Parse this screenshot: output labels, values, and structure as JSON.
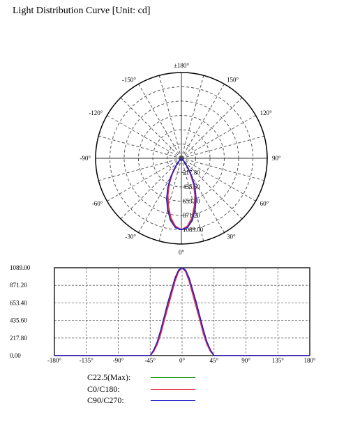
{
  "page": {
    "title": "Light Distribution Curve [Unit: cd]"
  },
  "colors": {
    "c22": "#1a9a1a",
    "c0": "#ee2244",
    "c90": "#2222cc",
    "grid": "#555555"
  },
  "chart_data": [
    {
      "type": "polar",
      "title": "",
      "angle_labels": [
        "±180°",
        "150°",
        "120°",
        "90°",
        "60°",
        "30°",
        "0°",
        "-30°",
        "-60°",
        "-90°",
        "-120°",
        "-150°"
      ],
      "radial_labels": [
        "217.80",
        "435.60",
        "653.40",
        "871.20",
        "1089.00"
      ],
      "radial_range": [
        0,
        1089
      ],
      "series": [
        {
          "name": "C22.5(Max)",
          "key": "c22",
          "angles": [
            0,
            5,
            10,
            15,
            20,
            25,
            30,
            35,
            40,
            45
          ],
          "values": [
            1089,
            1050,
            940,
            790,
            640,
            470,
            300,
            160,
            60,
            0
          ]
        },
        {
          "name": "C0/C180",
          "key": "c0",
          "angles": [
            0,
            5,
            10,
            15,
            20,
            25,
            30,
            35,
            40,
            45
          ],
          "values": [
            1089,
            1040,
            920,
            760,
            600,
            440,
            270,
            140,
            50,
            0
          ]
        },
        {
          "name": "C90/C270",
          "key": "c90",
          "angles": [
            0,
            5,
            10,
            15,
            20,
            25,
            30,
            35,
            40,
            45
          ],
          "values": [
            1089,
            1060,
            960,
            810,
            660,
            490,
            320,
            170,
            70,
            0
          ]
        }
      ]
    },
    {
      "type": "line",
      "x_tick_labels": [
        "-180°",
        "-135°",
        "-90°",
        "-45°",
        "0°",
        "45°",
        "90°",
        "135°",
        "180°"
      ],
      "y_tick_labels": [
        "0.00",
        "217.80",
        "435.60",
        "653.40",
        "871.20",
        "1089.00"
      ],
      "xlim": [
        -180,
        180
      ],
      "ylim": [
        0,
        1089
      ],
      "grid": true,
      "series": [
        {
          "name": "C22.5(Max)",
          "key": "c22",
          "x": [
            -180,
            -45,
            -40,
            -35,
            -30,
            -25,
            -20,
            -15,
            -10,
            -5,
            0,
            5,
            10,
            15,
            20,
            25,
            30,
            35,
            40,
            45,
            180
          ],
          "y": [
            0,
            0,
            60,
            160,
            300,
            470,
            640,
            790,
            940,
            1050,
            1089,
            1050,
            940,
            790,
            640,
            470,
            300,
            160,
            60,
            0,
            0
          ]
        },
        {
          "name": "C0/C180",
          "key": "c0",
          "x": [
            -180,
            -45,
            -40,
            -35,
            -30,
            -25,
            -20,
            -15,
            -10,
            -5,
            0,
            5,
            10,
            15,
            20,
            25,
            30,
            35,
            40,
            45,
            180
          ],
          "y": [
            0,
            0,
            50,
            140,
            270,
            440,
            600,
            760,
            920,
            1040,
            1089,
            1040,
            920,
            760,
            600,
            440,
            270,
            140,
            50,
            0,
            0
          ]
        },
        {
          "name": "C90/C270",
          "key": "c90",
          "x": [
            -180,
            -45,
            -40,
            -35,
            -30,
            -25,
            -20,
            -15,
            -10,
            -5,
            0,
            5,
            10,
            15,
            20,
            25,
            30,
            35,
            40,
            45,
            180
          ],
          "y": [
            0,
            0,
            70,
            170,
            320,
            490,
            660,
            810,
            960,
            1060,
            1089,
            1060,
            960,
            810,
            660,
            490,
            320,
            170,
            70,
            0,
            0
          ]
        }
      ]
    }
  ],
  "legend": [
    {
      "label": "C22.5(Max):",
      "key": "c22"
    },
    {
      "label": "C0/C180:",
      "key": "c0"
    },
    {
      "label": "C90/C270:",
      "key": "c90"
    }
  ]
}
